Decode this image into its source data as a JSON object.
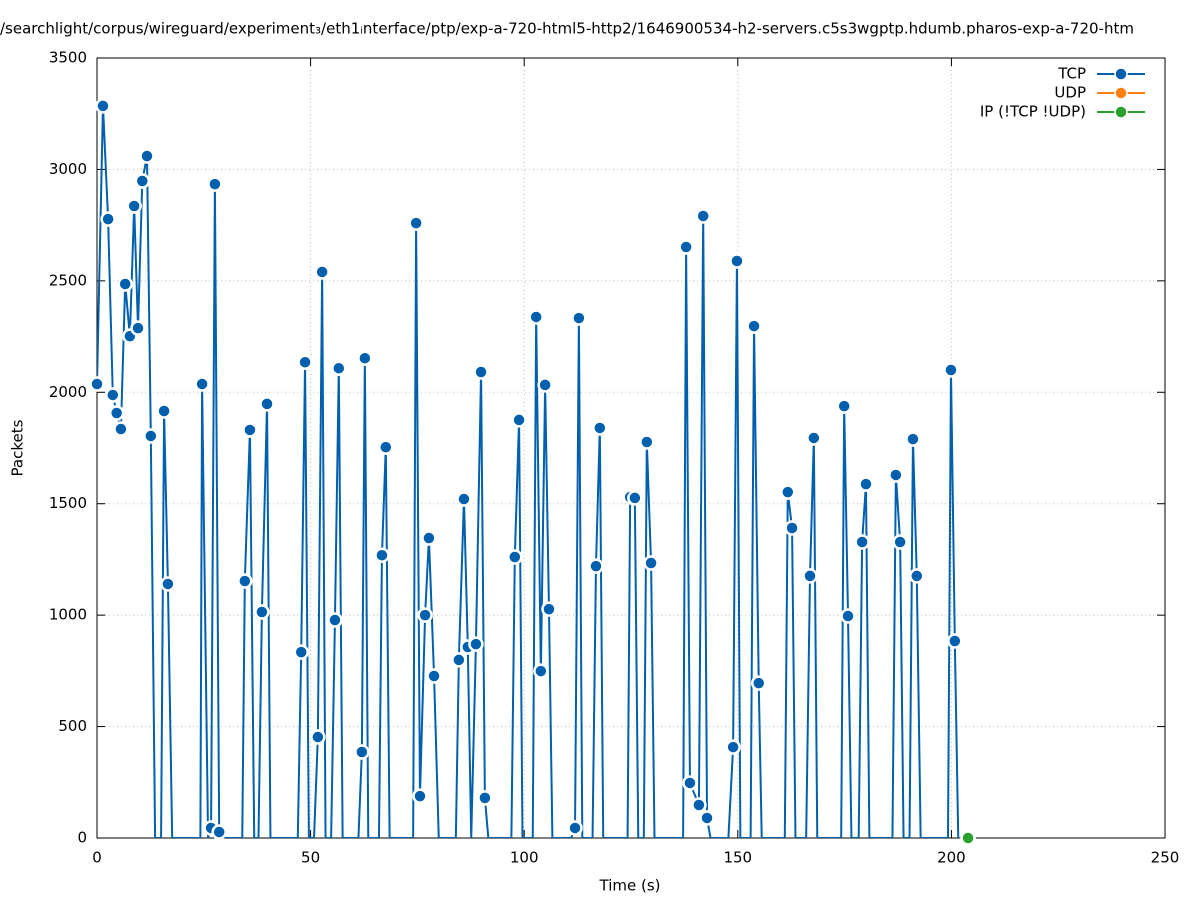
{
  "chart_data": {
    "type": "line",
    "title": "/searchlight/corpus/wireguard/experiment₃/eth1ᵢnterface/ptp/exp-a-720-html5-http2/1646900534-h2-servers.c5s3wgptp.hdumb.pharos-exp-a-720-htm",
    "x_label": "Time (s)",
    "y_label": "Packets",
    "xlim": [
      0,
      250
    ],
    "xticks": [
      0,
      50,
      100,
      150,
      200,
      250
    ],
    "ylim": [
      0,
      3500
    ],
    "yticks": [
      0,
      500,
      1000,
      1500,
      2000,
      2500,
      3000,
      3500
    ],
    "grid": true,
    "legend": "top-right",
    "series": [
      {
        "name": "TCP",
        "color": "#0060ad",
        "x": [
          0,
          1.4,
          2.6,
          3.7,
          4.6,
          5.6,
          6.6,
          7.7,
          8.7,
          9.6,
          10.6,
          11.7,
          12.6,
          13.6,
          15.0,
          15.7,
          16.6,
          17.6,
          24.2,
          24.6,
          26.0,
          26.7,
          27.6,
          28.6,
          29.2,
          34.0,
          34.6,
          35.8,
          36.8,
          37.8,
          38.6,
          39.8,
          40.6,
          47.0,
          47.8,
          48.7,
          49.6,
          50.8,
          51.7,
          52.7,
          53.5,
          54.8,
          55.7,
          56.6,
          57.5,
          61.2,
          62.0,
          62.7,
          63.5,
          66.0,
          66.7,
          67.6,
          68.5,
          74.0,
          74.7,
          75.6,
          76.8,
          77.7,
          78.9,
          80.0,
          84.0,
          84.7,
          85.9,
          86.8,
          87.6,
          88.7,
          89.9,
          90.8,
          91.6,
          97.0,
          97.8,
          98.8,
          99.6,
          102.0,
          102.8,
          103.9,
          104.9,
          105.8,
          106.6,
          111.0,
          111.9,
          112.8,
          113.6,
          116.0,
          116.8,
          117.7,
          118.5,
          124.2,
          124.8,
          125.9,
          126.7,
          128.0,
          128.7,
          129.7,
          130.5,
          137.2,
          137.9,
          138.8,
          140.9,
          141.9,
          142.8,
          143.6,
          147.8,
          148.9,
          149.8,
          150.6,
          153.0,
          153.8,
          154.9,
          155.6,
          161.0,
          161.7,
          162.7,
          163.5,
          166.0,
          166.9,
          167.8,
          168.6,
          174.2,
          174.9,
          175.8,
          176.6,
          178.3,
          179.1,
          180.0,
          180.8,
          186.2,
          187.0,
          188.0,
          188.8,
          190.2,
          191.0,
          191.9,
          192.8,
          199.2,
          199.9,
          200.8,
          201.6
        ],
        "values": [
          2037,
          3285,
          2777,
          1988,
          1907,
          1835,
          2486,
          2252,
          2836,
          2288,
          2948,
          3060,
          1804,
          0,
          0,
          1916,
          1140,
          0,
          0,
          2037,
          0,
          45,
          2934,
          27,
          0,
          0,
          1153,
          1831,
          0,
          0,
          1014,
          1948,
          0,
          0,
          834,
          2135,
          0,
          0,
          453,
          2540,
          0,
          0,
          978,
          2108,
          0,
          0,
          386,
          2153,
          0,
          0,
          1269,
          1754,
          0,
          0,
          2759,
          188,
          1000,
          1346,
          727,
          0,
          0,
          799,
          1521,
          857,
          0,
          870,
          2091,
          180,
          0,
          0,
          1261,
          1876,
          0,
          0,
          2338,
          749,
          2033,
          1027,
          0,
          0,
          45,
          2333,
          0,
          0,
          1220,
          1840,
          0,
          0,
          1530,
          1526,
          0,
          0,
          1777,
          1234,
          0,
          0,
          2652,
          247,
          148,
          2791,
          90,
          0,
          0,
          408,
          2589,
          0,
          0,
          2297,
          695,
          0,
          0,
          1552,
          1391,
          0,
          0,
          1176,
          1795,
          0,
          0,
          1938,
          996,
          0,
          0,
          1328,
          1588,
          0,
          0,
          1629,
          1328,
          0,
          0,
          1790,
          1176,
          0,
          0,
          2100,
          884,
          0
        ]
      },
      {
        "name": "UDP",
        "color": "#ff7f0e",
        "x": [],
        "values": []
      },
      {
        "name": "IP (!TCP  !UDP)",
        "color": "#2ca02c",
        "x": [
          203.9
        ],
        "values": [
          0
        ]
      }
    ]
  }
}
